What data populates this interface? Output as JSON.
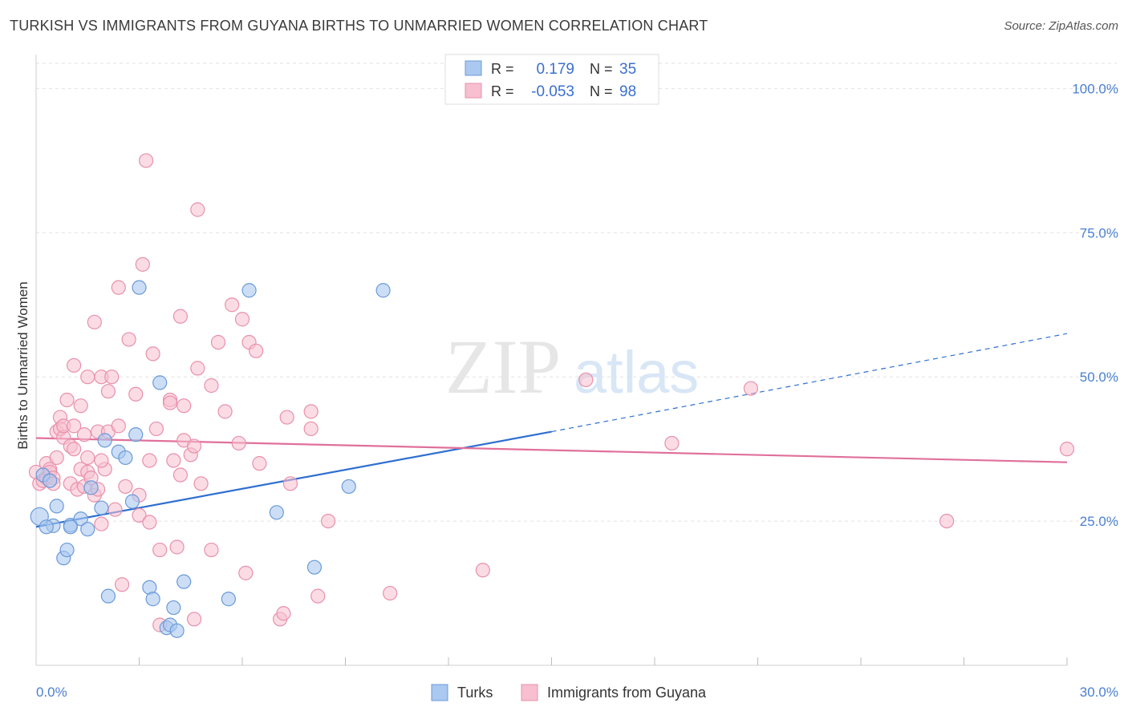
{
  "title": "TURKISH VS IMMIGRANTS FROM GUYANA BIRTHS TO UNMARRIED WOMEN CORRELATION CHART",
  "source": "Source: ZipAtlas.com",
  "watermark": {
    "zip": "ZIP",
    "atlas": "atlas"
  },
  "colors": {
    "turks_fill": "#aac8f0",
    "turks_stroke": "#6a9ad8",
    "turks_line": "#2f6fd0",
    "guyana_fill": "#f7bfd0",
    "guyana_stroke": "#e890aa",
    "guyana_line": "#e0709a",
    "axis_text": "#4a7fd0",
    "grid": "#e2e2e2"
  },
  "legend": {
    "rows": [
      {
        "r_label": "R =",
        "r_value": "0.179",
        "n_label": "N =",
        "n_value": "35"
      },
      {
        "r_label": "R =",
        "r_value": "-0.053",
        "n_label": "N =",
        "n_value": "98"
      }
    ]
  },
  "bottom_legend": {
    "turks": "Turks",
    "guyana": "Immigrants from Guyana"
  },
  "chart_data": {
    "type": "scatter",
    "title": "TURKISH VS IMMIGRANTS FROM GUYANA BIRTHS TO UNMARRIED WOMEN CORRELATION CHART",
    "xlabel": "",
    "ylabel": "Births to Unmarried Women",
    "xlim": [
      0,
      30
    ],
    "ylim": [
      0,
      104.5
    ],
    "x_tick_labels": [
      "0.0%",
      "30.0%"
    ],
    "y_tick_labels": [
      "25.0%",
      "50.0%",
      "75.0%",
      "100.0%"
    ],
    "y_ticks": [
      25,
      50,
      75,
      100
    ],
    "grid": true,
    "legend_position": "top-center",
    "series": [
      {
        "name": "Turks",
        "r": 0.179,
        "n": 35,
        "trend": {
          "x0": 0,
          "y0": 24.0,
          "x1": 15.0,
          "y1": 40.5,
          "dashed_to_x": 30,
          "dashed_to_y": 57.5
        },
        "points": [
          [
            0.1,
            25.8
          ],
          [
            0.5,
            24.2
          ],
          [
            0.6,
            27.6
          ],
          [
            0.8,
            18.6
          ],
          [
            0.9,
            20.0
          ],
          [
            1.0,
            24.3
          ],
          [
            1.3,
            25.4
          ],
          [
            1.5,
            23.6
          ],
          [
            1.6,
            30.8
          ],
          [
            1.9,
            27.3
          ],
          [
            2.0,
            39.0
          ],
          [
            2.1,
            12.0
          ],
          [
            2.4,
            37.0
          ],
          [
            2.6,
            36.0
          ],
          [
            2.8,
            28.4
          ],
          [
            2.9,
            40.0
          ],
          [
            3.0,
            65.5
          ],
          [
            3.3,
            13.5
          ],
          [
            3.4,
            11.5
          ],
          [
            3.6,
            49.0
          ],
          [
            3.8,
            6.5
          ],
          [
            3.9,
            7.0
          ],
          [
            4.0,
            10.0
          ],
          [
            4.1,
            6.0
          ],
          [
            4.3,
            14.5
          ],
          [
            5.6,
            11.5
          ],
          [
            6.2,
            65.0
          ],
          [
            7.0,
            26.5
          ],
          [
            8.1,
            17.0
          ],
          [
            9.1,
            31.0
          ],
          [
            10.1,
            65.0
          ],
          [
            0.3,
            24.0
          ],
          [
            1.0,
            24.0
          ],
          [
            0.2,
            33.0
          ],
          [
            0.4,
            32.0
          ]
        ]
      },
      {
        "name": "Immigrants from Guyana",
        "r": -0.053,
        "n": 98,
        "trend": {
          "x0": 0,
          "y0": 39.4,
          "x1": 30,
          "y1": 35.2
        },
        "points": [
          [
            0.0,
            33.5
          ],
          [
            0.1,
            31.5
          ],
          [
            0.2,
            32.0
          ],
          [
            0.3,
            32.5
          ],
          [
            0.3,
            35.0
          ],
          [
            0.4,
            34.0
          ],
          [
            0.4,
            33.5
          ],
          [
            0.5,
            32.5
          ],
          [
            0.5,
            31.5
          ],
          [
            0.6,
            36.0
          ],
          [
            0.6,
            40.5
          ],
          [
            0.7,
            43.0
          ],
          [
            0.7,
            41.0
          ],
          [
            0.8,
            39.5
          ],
          [
            0.8,
            41.5
          ],
          [
            0.9,
            46.0
          ],
          [
            1.0,
            38.0
          ],
          [
            1.0,
            31.5
          ],
          [
            1.1,
            41.5
          ],
          [
            1.1,
            37.5
          ],
          [
            1.1,
            52.0
          ],
          [
            1.2,
            30.5
          ],
          [
            1.3,
            34.0
          ],
          [
            1.3,
            45.0
          ],
          [
            1.4,
            40.0
          ],
          [
            1.4,
            31.0
          ],
          [
            1.5,
            33.5
          ],
          [
            1.5,
            36.0
          ],
          [
            1.5,
            50.0
          ],
          [
            1.6,
            32.5
          ],
          [
            1.7,
            29.5
          ],
          [
            1.7,
            59.5
          ],
          [
            1.8,
            30.5
          ],
          [
            1.8,
            40.5
          ],
          [
            1.9,
            50.0
          ],
          [
            1.9,
            24.5
          ],
          [
            2.0,
            34.0
          ],
          [
            2.1,
            40.5
          ],
          [
            2.1,
            47.5
          ],
          [
            2.2,
            50.0
          ],
          [
            2.3,
            27.0
          ],
          [
            2.4,
            41.5
          ],
          [
            2.4,
            65.5
          ],
          [
            2.5,
            14.0
          ],
          [
            2.7,
            56.5
          ],
          [
            2.9,
            47.0
          ],
          [
            3.0,
            29.5
          ],
          [
            3.0,
            26.0
          ],
          [
            3.1,
            69.5
          ],
          [
            3.2,
            87.5
          ],
          [
            3.3,
            24.8
          ],
          [
            3.3,
            35.5
          ],
          [
            3.4,
            54.0
          ],
          [
            3.5,
            41.0
          ],
          [
            3.6,
            7.0
          ],
          [
            3.6,
            20.0
          ],
          [
            3.9,
            46.0
          ],
          [
            3.9,
            45.5
          ],
          [
            4.0,
            35.5
          ],
          [
            4.1,
            20.5
          ],
          [
            4.2,
            60.5
          ],
          [
            4.3,
            39.0
          ],
          [
            4.3,
            45.0
          ],
          [
            4.5,
            36.5
          ],
          [
            4.6,
            38.0
          ],
          [
            4.6,
            8.0
          ],
          [
            4.7,
            79.0
          ],
          [
            4.7,
            51.5
          ],
          [
            4.8,
            31.5
          ],
          [
            5.1,
            20.0
          ],
          [
            5.1,
            48.5
          ],
          [
            5.3,
            56.0
          ],
          [
            5.5,
            44.0
          ],
          [
            5.7,
            62.5
          ],
          [
            5.9,
            38.5
          ],
          [
            6.0,
            60.0
          ],
          [
            6.1,
            16.0
          ],
          [
            6.2,
            56.0
          ],
          [
            6.4,
            54.5
          ],
          [
            6.5,
            35.0
          ],
          [
            7.1,
            8.0
          ],
          [
            7.2,
            9.0
          ],
          [
            7.3,
            43.0
          ],
          [
            7.4,
            31.5
          ],
          [
            8.0,
            41.0
          ],
          [
            8.0,
            44.0
          ],
          [
            8.2,
            12.0
          ],
          [
            8.5,
            25.0
          ],
          [
            10.3,
            12.5
          ],
          [
            13.0,
            16.5
          ],
          [
            16.0,
            49.5
          ],
          [
            18.5,
            38.5
          ],
          [
            20.8,
            48.0
          ],
          [
            26.5,
            25.0
          ],
          [
            30.0,
            37.5
          ],
          [
            4.2,
            33.0
          ],
          [
            2.6,
            31.0
          ],
          [
            1.9,
            35.5
          ]
        ]
      }
    ]
  }
}
